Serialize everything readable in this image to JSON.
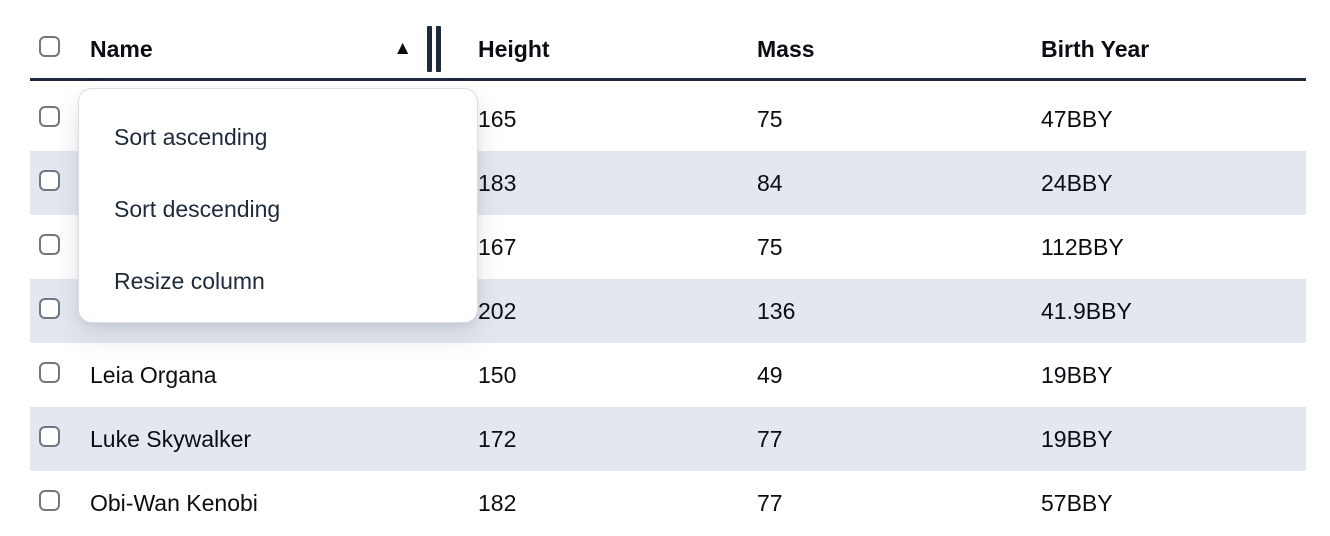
{
  "header": {
    "select_all_checkbox": {
      "checked": false
    },
    "columns": [
      {
        "label": "Name",
        "sort": "ascending"
      },
      {
        "label": "Height"
      },
      {
        "label": "Mass"
      },
      {
        "label": "Birth Year"
      }
    ]
  },
  "rows": [
    {
      "name": "",
      "height": "165",
      "mass": "75",
      "birth_year": "47BBY"
    },
    {
      "name": "",
      "height": "183",
      "mass": "84",
      "birth_year": "24BBY"
    },
    {
      "name": "",
      "height": "167",
      "mass": "75",
      "birth_year": "112BBY"
    },
    {
      "name": "",
      "height": "202",
      "mass": "136",
      "birth_year": "41.9BBY"
    },
    {
      "name": "Leia Organa",
      "height": "150",
      "mass": "49",
      "birth_year": "19BBY"
    },
    {
      "name": "Luke Skywalker",
      "height": "172",
      "mass": "77",
      "birth_year": "19BBY"
    },
    {
      "name": "Obi-Wan Kenobi",
      "height": "182",
      "mass": "77",
      "birth_year": "57BBY"
    }
  ],
  "context_menu": {
    "items": [
      {
        "label": "Sort ascending"
      },
      {
        "label": "Sort descending"
      },
      {
        "label": "Resize column"
      }
    ]
  },
  "icons": {
    "sort_ascending": "▲",
    "column_resize": "double-bar"
  },
  "colors": {
    "header_border": "#1e293b",
    "row_stripe": "#e3e8f0",
    "menu_text": "#1e293b"
  }
}
